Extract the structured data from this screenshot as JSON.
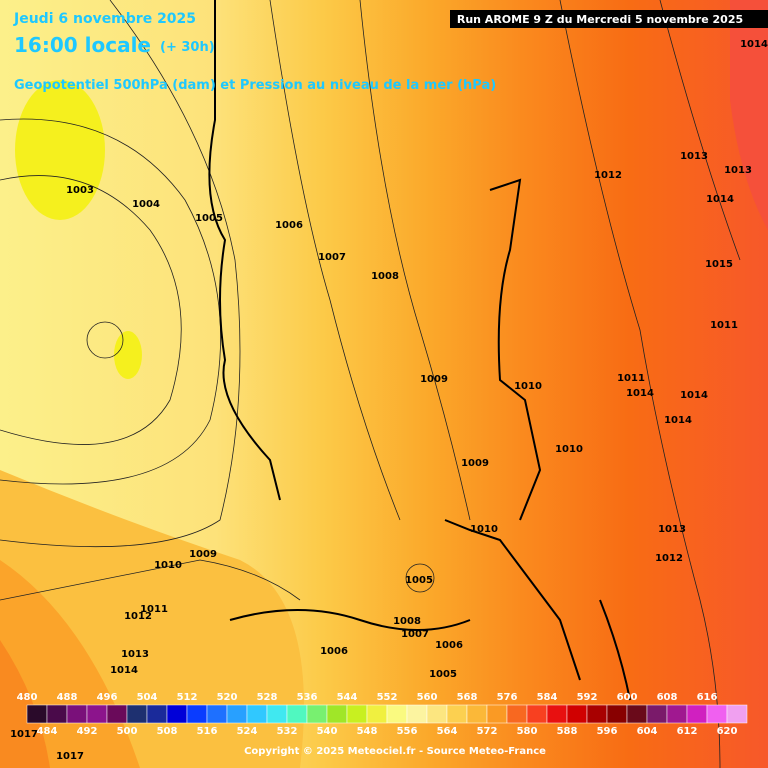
{
  "header": {
    "date": "Jeudi 6 novembre 2025",
    "time": "16:00 locale",
    "lead": "(+ 30h)",
    "description": "Geopotentiel 500hPa (dam) et Pression au niveau de la mer (hPa)"
  },
  "run_label": "Run AROME 9 Z du Mercredi 5 novembre 2025",
  "isobar_labels": [
    1003,
    1004,
    1005,
    1006,
    1007,
    1008,
    1009,
    1009,
    1010,
    1010,
    1010,
    1011,
    1012,
    1013,
    1014,
    1015,
    1014,
    1013,
    1011,
    1014,
    1014,
    1014,
    1013,
    1012,
    1009,
    1010,
    1011,
    1012,
    1013,
    1014,
    1005,
    1008,
    1007,
    1006,
    1006,
    1005,
    1017,
    1017
  ],
  "colorbar": {
    "top_labels": [
      480,
      488,
      496,
      504,
      512,
      520,
      528,
      536,
      544,
      552,
      560,
      568,
      576,
      584,
      592,
      600,
      608,
      616
    ],
    "bottom_labels": [
      484,
      492,
      500,
      508,
      516,
      524,
      532,
      540,
      548,
      556,
      564,
      572,
      580,
      588,
      596,
      604,
      612,
      620
    ],
    "colors": [
      "#2a0a2a",
      "#4a0a4a",
      "#7a107a",
      "#8c148c",
      "#6a0a5a",
      "#1e3070",
      "#1a2a9a",
      "#0000d8",
      "#0a3cff",
      "#1e70ff",
      "#28a0ff",
      "#30c8ff",
      "#40e8f0",
      "#50f8c0",
      "#78f070",
      "#a0e628",
      "#c8f020",
      "#f0f040",
      "#fafa80",
      "#fcf4a0",
      "#fce680",
      "#fcd050",
      "#fbb838",
      "#fa9a24",
      "#f86820",
      "#f84020",
      "#e81010",
      "#d00000",
      "#a80000",
      "#880000",
      "#6a0a1a",
      "#7a1a6a",
      "#a01890",
      "#d020c0",
      "#f060f0",
      "#f0a0f0"
    ]
  },
  "copyright": "Copyright © 2025 Meteociel.fr - Source Meteo-France"
}
